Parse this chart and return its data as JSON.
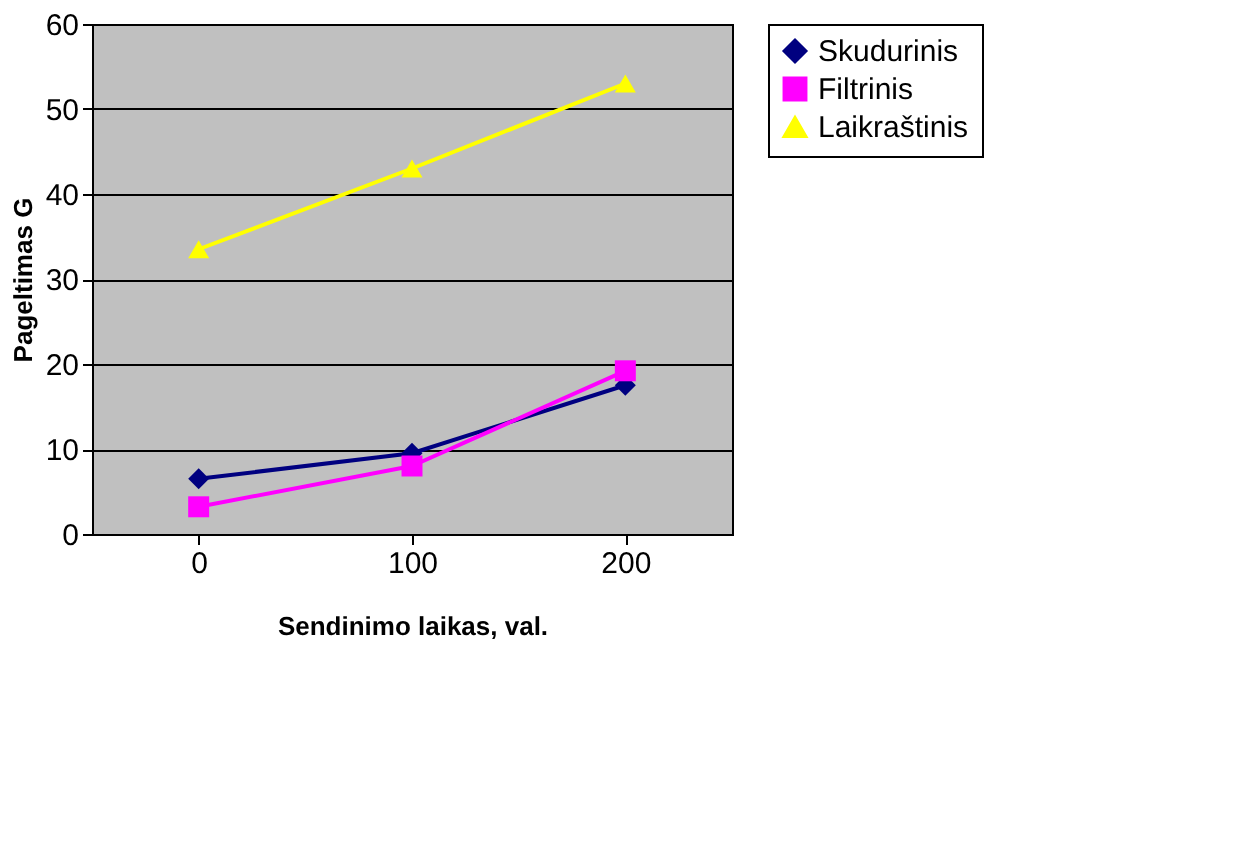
{
  "chart_data": {
    "type": "line",
    "xlabel": "Sendinimo laikas, val.",
    "ylabel": "Pageltimas G",
    "categories": [
      "0",
      "100",
      "200"
    ],
    "series": [
      {
        "name": "Skudurinis",
        "color": "#000080",
        "marker": "diamond",
        "values": [
          6.5,
          9.5,
          17.5
        ]
      },
      {
        "name": "Filtrinis",
        "color": "#ff00ff",
        "marker": "square",
        "values": [
          3.2,
          8,
          19.2
        ]
      },
      {
        "name": "Laikraštinis",
        "color": "#ffff00",
        "marker": "triangle",
        "values": [
          33.5,
          43,
          53
        ]
      }
    ],
    "ylim": [
      0,
      60
    ],
    "yticks": [
      0,
      10,
      20,
      30,
      40,
      50,
      60
    ],
    "grid": "y",
    "legend": "right"
  }
}
